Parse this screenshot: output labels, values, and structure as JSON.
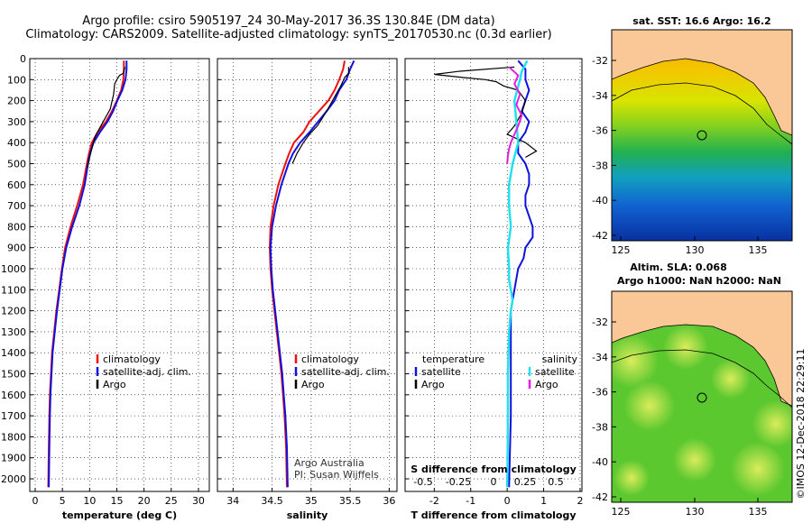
{
  "header": {
    "title_line1": "Argo profile: csiro 5905197_24 30-May-2017 36.3S 130.84E (DM data)",
    "title_line2": "Climatology: CARS2009. Satellite-adjusted climatology: synTS_20170530.nc (0.3d earlier)"
  },
  "colors": {
    "climatology": "#ee1111",
    "satellite": "#1111dd",
    "argo": "#000000",
    "sat_salinity": "#22e0f0",
    "argo_salinity": "#e020e0",
    "land": "#fac896"
  },
  "chart_data": [
    {
      "type": "line",
      "panel": "temperature",
      "xlabel": "temperature (deg C)",
      "xlim": [
        -1,
        32
      ],
      "ylim": [
        2060,
        0
      ],
      "xticks": [
        0,
        5,
        10,
        15,
        20,
        25,
        30
      ],
      "yticks": [
        0,
        100,
        200,
        300,
        400,
        500,
        600,
        700,
        800,
        900,
        1000,
        1100,
        1200,
        1300,
        1400,
        1500,
        1600,
        1700,
        1800,
        1900,
        2000
      ],
      "legend": [
        "climatology",
        "satellite-adj. clim.",
        "Argo"
      ],
      "series": [
        {
          "name": "climatology",
          "x": [
            16.3,
            16.3,
            16.2,
            15.8,
            15.0,
            14.1,
            13.0,
            11.5,
            10.4,
            9.9,
            9.5,
            8.8,
            7.7,
            6.5,
            5.5,
            4.9,
            4.4,
            3.9,
            3.5,
            3.1,
            2.9,
            2.7,
            2.6,
            2.5,
            2.4
          ],
          "y": [
            10,
            50,
            100,
            150,
            200,
            250,
            300,
            350,
            400,
            450,
            500,
            600,
            700,
            800,
            900,
            1000,
            1100,
            1200,
            1300,
            1400,
            1500,
            1600,
            1700,
            1850,
            2040
          ]
        },
        {
          "name": "satellite-adj. clim.",
          "x": [
            16.8,
            16.8,
            16.6,
            16.0,
            15.1,
            14.3,
            13.3,
            11.9,
            10.7,
            10.1,
            9.7,
            9.1,
            8.1,
            6.8,
            5.7,
            5.0,
            4.5,
            4.0,
            3.6,
            3.2,
            3.0,
            2.8,
            2.7,
            2.6,
            2.5
          ],
          "y": [
            10,
            50,
            100,
            150,
            200,
            250,
            300,
            350,
            400,
            450,
            500,
            600,
            700,
            800,
            900,
            1000,
            1100,
            1200,
            1300,
            1400,
            1500,
            1600,
            1700,
            1850,
            2040
          ]
        },
        {
          "name": "Argo",
          "x": [
            16.5,
            16.2,
            15.5,
            15.0,
            14.6,
            14.4,
            13.8,
            12.5,
            11.0,
            10.5,
            10.0,
            9.6
          ],
          "y": [
            40,
            70,
            80,
            100,
            120,
            170,
            240,
            300,
            370,
            420,
            470,
            520
          ]
        }
      ]
    },
    {
      "type": "line",
      "panel": "salinity",
      "xlabel": "salinity",
      "xlim": [
        33.8,
        36.1
      ],
      "ylim": [
        2060,
        0
      ],
      "xticks": [
        34,
        34.5,
        35,
        35.5,
        36
      ],
      "legend": [
        "climatology",
        "satellite-adj. clim.",
        "Argo"
      ],
      "annotations": [
        "Argo Australia",
        "PI: Susan Wijffels"
      ],
      "series": [
        {
          "name": "climatology",
          "x": [
            35.43,
            35.41,
            35.36,
            35.3,
            35.22,
            35.1,
            34.98,
            34.9,
            34.78,
            34.72,
            34.67,
            34.58,
            34.52,
            34.48,
            34.47,
            34.48,
            34.5,
            34.53,
            34.56,
            34.59,
            34.62,
            34.64,
            34.66,
            34.68,
            34.69
          ],
          "y": [
            10,
            50,
            100,
            150,
            200,
            250,
            300,
            350,
            400,
            450,
            500,
            600,
            700,
            800,
            900,
            1000,
            1100,
            1200,
            1300,
            1400,
            1500,
            1600,
            1700,
            1850,
            2040
          ]
        },
        {
          "name": "satellite-adj. clim.",
          "x": [
            35.55,
            35.5,
            35.45,
            35.36,
            35.3,
            35.2,
            35.09,
            34.98,
            34.86,
            34.77,
            34.71,
            34.62,
            34.55,
            34.5,
            34.48,
            34.49,
            34.51,
            34.54,
            34.57,
            34.6,
            34.63,
            34.65,
            34.67,
            34.69,
            34.7
          ],
          "y": [
            10,
            50,
            100,
            150,
            200,
            250,
            300,
            350,
            400,
            450,
            500,
            600,
            700,
            800,
            900,
            1000,
            1100,
            1200,
            1300,
            1400,
            1500,
            1600,
            1700,
            1850,
            2040
          ]
        },
        {
          "name": "Argo",
          "x": [
            35.48,
            35.48,
            35.43,
            35.38,
            35.32,
            35.23,
            35.15,
            35.08,
            34.98,
            34.9,
            34.82,
            34.76
          ],
          "y": [
            40,
            70,
            90,
            130,
            170,
            230,
            280,
            320,
            360,
            400,
            450,
            500
          ]
        }
      ]
    },
    {
      "type": "line",
      "panel": "difference",
      "xlabel": "T difference from climatology",
      "xlabel_top": "S difference from climatology",
      "xlim": [
        -2.8,
        2.05
      ],
      "ylim": [
        2060,
        0
      ],
      "xticks": [
        -2,
        -1,
        0,
        1,
        2
      ],
      "xticks_s": [
        "-0.5",
        "-0.25",
        "0",
        "0.25",
        "0.5"
      ],
      "legend_temperature": [
        "temperature",
        "satellite",
        "Argo"
      ],
      "legend_salinity": [
        "salinity",
        "satellite",
        "Argo"
      ],
      "series": [
        {
          "name": "temperature satellite",
          "x": [
            0.3,
            0.5,
            0.5,
            0.6,
            0.5,
            0.4,
            0.6,
            0.5,
            0.3,
            0.3,
            0.5,
            0.6,
            0.6,
            0.5,
            0.5,
            0.6,
            0.7,
            0.7,
            0.5,
            0.45,
            0.3,
            0.2,
            0.1,
            0.1,
            0.1,
            0.05
          ],
          "y": [
            10,
            50,
            100,
            150,
            200,
            250,
            300,
            350,
            400,
            450,
            500,
            550,
            600,
            650,
            700,
            750,
            800,
            850,
            900,
            950,
            1000,
            1100,
            1200,
            1400,
            1700,
            2040
          ]
        },
        {
          "name": "temperature Argo",
          "x": [
            0.2,
            -1.3,
            -2.0,
            -1.2,
            -0.6,
            -0.3,
            -0.1,
            0.3,
            0.5,
            0.4,
            0.2,
            0.0,
            0.5,
            0.8,
            0.5
          ],
          "y": [
            40,
            60,
            75,
            90,
            100,
            110,
            130,
            150,
            200,
            260,
            320,
            360,
            400,
            440,
            470
          ]
        },
        {
          "name": "salinity satellite",
          "x": [
            0.55,
            0.4,
            0.35,
            0.2,
            0.25,
            0.3,
            0.15,
            0.05,
            0.05,
            0.1,
            0.02,
            0.05,
            0.05,
            0.1,
            0.15,
            0.1,
            0.05,
            0.02,
            0.02,
            0.01,
            0.0
          ],
          "y": [
            10,
            60,
            100,
            200,
            300,
            400,
            500,
            600,
            700,
            800,
            900,
            1000,
            1050,
            1100,
            1150,
            1200,
            1300,
            1500,
            1700,
            1900,
            2040
          ]
        },
        {
          "name": "salinity Argo",
          "x": [
            0.05,
            0.3,
            0.2,
            0.35,
            0.25,
            0.4,
            0.3,
            0.2,
            0.1,
            0.05,
            0.02,
            0.0
          ],
          "y": [
            40,
            80,
            120,
            170,
            220,
            270,
            320,
            360,
            400,
            430,
            460,
            500
          ]
        }
      ]
    }
  ],
  "maps": {
    "sst_title": "sat. SST: 16.6 Argo: 16.2",
    "sla_title_1": "Altim. SLA: 0.068",
    "sla_title_2": "Argo h1000: NaN h2000: NaN",
    "lon_ticks": [
      "125",
      "130",
      "135"
    ],
    "lat_ticks": [
      "-32",
      "-34",
      "-36",
      "-38",
      "-40",
      "-42"
    ],
    "profile_lon": 130.84,
    "profile_lat": -36.3
  },
  "footer": {
    "credit": "©IMOS 12-Dec-2018 22:29:11"
  }
}
